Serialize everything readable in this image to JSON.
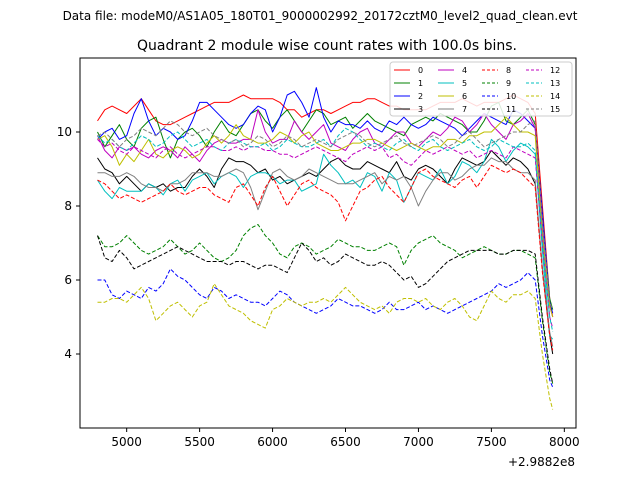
{
  "chart_data": {
    "type": "line",
    "suptitle": "Data file: modeM0/AS1A05_180T01_9000002992_20172cztM0_level2_quad_clean.evt",
    "title": "Quadrant 2 module wise count rates with 100.0s bins.",
    "xlabel": "",
    "ylabel": "",
    "x_offset_label": "+2.9882e8",
    "xlim": [
      4680,
      8080
    ],
    "ylim": [
      2.0,
      12.0
    ],
    "xticks": [
      5000,
      5500,
      6000,
      6500,
      7000,
      7500,
      8000
    ],
    "yticks": [
      4,
      6,
      8,
      10
    ],
    "x": [
      4800,
      4850,
      4900,
      4950,
      5000,
      5050,
      5100,
      5150,
      5200,
      5250,
      5300,
      5350,
      5400,
      5450,
      5500,
      5550,
      5600,
      5650,
      5700,
      5750,
      5800,
      5850,
      5900,
      5950,
      6000,
      6050,
      6100,
      6150,
      6200,
      6250,
      6300,
      6350,
      6400,
      6450,
      6500,
      6550,
      6600,
      6650,
      6700,
      6750,
      6800,
      6850,
      6900,
      6950,
      7000,
      7050,
      7100,
      7150,
      7200,
      7250,
      7300,
      7350,
      7400,
      7450,
      7500,
      7550,
      7600,
      7650,
      7700,
      7750,
      7800,
      7850,
      7900,
      7920
    ],
    "legend_position": "top-right",
    "series": [
      {
        "name": "0",
        "color": "#ff0000",
        "dash": "solid",
        "values": [
          10.3,
          10.6,
          10.7,
          10.6,
          10.5,
          10.7,
          10.9,
          10.6,
          10.3,
          10.2,
          10.2,
          10.3,
          10.4,
          10.5,
          10.6,
          10.7,
          10.8,
          10.8,
          10.8,
          10.9,
          11.0,
          10.9,
          10.9,
          10.9,
          10.9,
          10.8,
          10.6,
          10.6,
          10.4,
          10.5,
          10.6,
          10.6,
          10.5,
          10.6,
          10.7,
          10.8,
          10.8,
          10.9,
          10.9,
          10.8,
          10.7,
          10.7,
          10.6,
          10.6,
          10.6,
          10.6,
          10.7,
          10.8,
          10.8,
          10.8,
          10.9,
          10.8,
          10.7,
          10.8,
          10.8,
          10.8,
          10.9,
          11.0,
          10.9,
          10.8,
          10.5,
          8.0,
          5.5,
          5.0
        ]
      },
      {
        "name": "1",
        "color": "#008000",
        "dash": "solid",
        "values": [
          10.0,
          9.6,
          9.9,
          10.2,
          9.8,
          9.6,
          10.1,
          10.3,
          10.4,
          9.8,
          9.3,
          9.8,
          10.0,
          10.1,
          9.9,
          9.6,
          10.0,
          10.3,
          10.0,
          9.9,
          10.2,
          10.5,
          10.6,
          10.3,
          10.1,
          10.4,
          10.6,
          10.3,
          10.0,
          10.3,
          10.6,
          10.5,
          10.2,
          10.3,
          10.4,
          10.1,
          10.3,
          10.5,
          10.3,
          10.2,
          10.1,
          10.0,
          9.9,
          10.2,
          10.3,
          10.4,
          10.3,
          10.5,
          10.4,
          10.3,
          10.2,
          10.0,
          10.0,
          10.3,
          10.7,
          10.8,
          10.3,
          10.2,
          10.4,
          10.6,
          10.2,
          7.7,
          5.5,
          5.2
        ]
      },
      {
        "name": "2",
        "color": "#0000ff",
        "dash": "solid",
        "values": [
          9.8,
          10.0,
          10.1,
          9.8,
          9.9,
          10.5,
          10.9,
          10.3,
          9.9,
          10.1,
          10.0,
          9.8,
          9.9,
          10.3,
          10.8,
          10.8,
          10.6,
          10.4,
          10.2,
          10.1,
          10.2,
          10.5,
          10.7,
          10.6,
          10.0,
          10.4,
          11.0,
          11.1,
          10.8,
          10.4,
          11.2,
          10.4,
          10.0,
          10.3,
          10.2,
          10.2,
          10.1,
          10.3,
          10.1,
          10.0,
          10.3,
          10.2,
          10.4,
          10.2,
          10.1,
          10.2,
          10.4,
          10.3,
          10.2,
          10.1,
          9.9,
          10.1,
          10.3,
          10.5,
          10.4,
          10.3,
          10.2,
          10.6,
          10.5,
          10.3,
          10.1,
          7.8,
          5.4,
          5.1
        ]
      },
      {
        "name": "3",
        "color": "#000000",
        "dash": "solid",
        "values": [
          9.3,
          9.0,
          8.9,
          8.6,
          8.8,
          8.6,
          8.4,
          8.6,
          8.5,
          8.6,
          8.4,
          8.5,
          8.5,
          8.8,
          9.0,
          8.8,
          8.5,
          9.0,
          9.3,
          9.2,
          9.2,
          9.1,
          8.9,
          9.0,
          8.7,
          8.8,
          8.6,
          8.7,
          8.8,
          8.9,
          8.8,
          9.0,
          9.2,
          9.3,
          9.1,
          9.0,
          9.0,
          9.2,
          9.1,
          9.0,
          8.9,
          9.2,
          8.8,
          8.7,
          9.0,
          9.1,
          9.0,
          8.8,
          8.6,
          9.0,
          9.3,
          9.2,
          9.1,
          9.2,
          9.5,
          9.3,
          9.1,
          9.3,
          9.2,
          9.0,
          8.6,
          6.3,
          4.5,
          4.0
        ]
      },
      {
        "name": "4",
        "color": "#bf00bf",
        "dash": "solid",
        "values": [
          9.9,
          9.5,
          9.3,
          9.6,
          9.5,
          9.6,
          9.4,
          9.3,
          9.5,
          9.6,
          9.5,
          9.3,
          9.6,
          9.4,
          9.2,
          9.5,
          9.7,
          9.8,
          9.7,
          9.7,
          9.8,
          9.8,
          10.6,
          10.0,
          9.7,
          9.8,
          9.8,
          10.3,
          10.0,
          9.8,
          10.0,
          10.2,
          9.7,
          9.6,
          9.5,
          9.8,
          10.0,
          10.1,
          9.7,
          9.6,
          9.8,
          10.0,
          10.0,
          9.7,
          9.6,
          9.8,
          10.0,
          9.9,
          10.1,
          10.4,
          10.3,
          10.0,
          10.2,
          10.5,
          10.2,
          10.0,
          9.8,
          10.2,
          10.3,
          10.5,
          10.1,
          7.4,
          5.3,
          5.0
        ]
      },
      {
        "name": "5",
        "color": "#00bfbf",
        "dash": "solid",
        "values": [
          8.7,
          8.4,
          8.2,
          8.5,
          8.4,
          8.4,
          8.4,
          8.6,
          8.5,
          8.3,
          8.6,
          8.7,
          8.4,
          8.7,
          8.8,
          8.9,
          8.6,
          8.8,
          8.9,
          8.8,
          8.5,
          8.8,
          8.9,
          8.9,
          8.8,
          8.6,
          8.7,
          8.7,
          8.4,
          8.5,
          8.6,
          9.4,
          9.1,
          8.9,
          8.6,
          8.7,
          8.5,
          8.9,
          8.8,
          8.4,
          8.9,
          8.7,
          8.1,
          8.5,
          8.9,
          8.8,
          8.7,
          9.0,
          8.6,
          8.8,
          9.2,
          9.1,
          8.9,
          9.2,
          9.8,
          9.6,
          9.2,
          9.5,
          9.7,
          9.6,
          9.4,
          6.8,
          4.5,
          4.4
        ]
      },
      {
        "name": "6",
        "color": "#bfbf00",
        "dash": "solid",
        "values": [
          9.8,
          9.9,
          9.6,
          9.1,
          9.4,
          9.2,
          9.5,
          9.8,
          9.4,
          9.3,
          9.5,
          9.6,
          9.5,
          9.3,
          9.4,
          9.7,
          9.9,
          9.7,
          9.9,
          10.2,
          9.9,
          9.8,
          9.7,
          9.7,
          9.8,
          10.0,
          9.9,
          9.7,
          9.9,
          10.0,
          9.7,
          9.6,
          9.5,
          9.5,
          9.6,
          9.7,
          9.7,
          9.8,
          9.8,
          9.7,
          9.6,
          9.5,
          9.6,
          9.7,
          9.6,
          9.5,
          9.6,
          9.6,
          9.8,
          9.8,
          9.7,
          9.9,
          9.9,
          10.0,
          10.0,
          10.2,
          10.4,
          10.2,
          10.0,
          10.0,
          9.9,
          7.2,
          5.3,
          5.0
        ]
      },
      {
        "name": "7",
        "color": "#808080",
        "dash": "solid",
        "values": [
          8.9,
          8.9,
          8.8,
          8.8,
          8.9,
          8.8,
          8.6,
          8.5,
          8.5,
          8.4,
          8.6,
          8.6,
          8.7,
          8.9,
          8.9,
          8.9,
          8.8,
          8.8,
          8.9,
          9.0,
          8.9,
          8.5,
          7.9,
          8.4,
          8.9,
          9.0,
          8.8,
          8.7,
          8.8,
          9.0,
          8.9,
          8.8,
          8.7,
          8.6,
          8.6,
          8.6,
          8.7,
          8.8,
          8.9,
          8.6,
          8.8,
          8.7,
          8.8,
          8.5,
          8.0,
          8.4,
          8.7,
          8.9,
          8.9,
          8.7,
          8.8,
          9.0,
          9.1,
          9.1,
          9.3,
          9.2,
          9.2,
          9.0,
          8.9,
          8.9,
          8.7,
          6.3,
          4.6,
          4.2
        ]
      },
      {
        "name": "8",
        "color": "#ff0000",
        "dash": "dashed",
        "values": [
          8.7,
          8.6,
          8.4,
          8.2,
          8.3,
          8.2,
          8.1,
          8.2,
          8.3,
          8.4,
          8.6,
          8.4,
          8.3,
          8.4,
          8.5,
          8.5,
          8.3,
          8.2,
          8.1,
          8.5,
          8.6,
          8.3,
          8.0,
          8.5,
          8.8,
          8.4,
          8.0,
          8.3,
          8.6,
          8.7,
          8.5,
          8.4,
          8.3,
          8.1,
          7.6,
          8.0,
          8.4,
          8.5,
          8.7,
          8.8,
          8.5,
          8.3,
          8.1,
          8.5,
          8.9,
          9.0,
          8.8,
          8.7,
          8.6,
          8.5,
          8.7,
          8.8,
          8.5,
          8.8,
          9.1,
          9.0,
          8.9,
          9.0,
          8.9,
          8.7,
          8.5,
          6.2,
          4.5,
          4.1
        ]
      },
      {
        "name": "9",
        "color": "#008000",
        "dash": "dashed",
        "values": [
          7.2,
          6.9,
          6.9,
          7.0,
          7.2,
          7.0,
          6.8,
          6.7,
          6.8,
          6.9,
          7.1,
          6.9,
          6.7,
          6.8,
          7.0,
          6.8,
          6.6,
          6.5,
          6.6,
          6.8,
          7.2,
          7.4,
          7.5,
          7.2,
          7.0,
          6.7,
          6.6,
          6.9,
          7.0,
          6.9,
          6.7,
          6.8,
          6.9,
          7.1,
          7.0,
          6.9,
          6.9,
          6.8,
          6.8,
          6.9,
          7.0,
          6.9,
          6.4,
          6.8,
          7.0,
          7.1,
          7.2,
          7.0,
          6.9,
          6.8,
          6.6,
          6.7,
          6.8,
          6.9,
          6.8,
          6.7,
          6.7,
          6.8,
          6.8,
          6.7,
          6.6,
          4.9,
          3.5,
          3.2
        ]
      },
      {
        "name": "10",
        "color": "#0000ff",
        "dash": "dashed",
        "values": [
          6.0,
          6.0,
          5.6,
          5.5,
          5.7,
          5.6,
          5.5,
          5.8,
          5.7,
          5.9,
          6.3,
          6.1,
          6.0,
          5.8,
          5.6,
          5.5,
          5.8,
          5.7,
          5.5,
          5.6,
          5.5,
          5.4,
          5.4,
          5.3,
          5.5,
          5.7,
          5.6,
          5.4,
          5.3,
          5.2,
          5.1,
          5.2,
          5.3,
          5.5,
          5.4,
          5.3,
          5.3,
          5.2,
          5.1,
          5.2,
          5.4,
          5.2,
          5.2,
          5.3,
          5.4,
          5.2,
          5.3,
          5.2,
          5.1,
          5.2,
          5.3,
          5.4,
          5.5,
          5.6,
          5.7,
          5.9,
          5.8,
          5.9,
          6.0,
          6.2,
          6.0,
          4.5,
          3.3,
          3.1
        ]
      },
      {
        "name": "11",
        "color": "#000000",
        "dash": "dashed",
        "values": [
          7.2,
          6.6,
          6.5,
          6.8,
          6.6,
          6.3,
          6.4,
          6.5,
          6.6,
          6.7,
          6.8,
          6.9,
          6.8,
          6.7,
          6.6,
          6.5,
          6.5,
          6.5,
          6.4,
          6.5,
          6.5,
          6.4,
          6.3,
          6.4,
          6.4,
          6.3,
          6.2,
          6.6,
          7.0,
          6.8,
          6.5,
          6.6,
          6.4,
          6.5,
          6.7,
          6.6,
          6.5,
          6.4,
          6.4,
          6.5,
          6.4,
          6.2,
          6.0,
          6.1,
          5.8,
          5.9,
          6.1,
          6.3,
          6.5,
          6.6,
          6.7,
          6.8,
          6.8,
          6.8,
          6.8,
          6.7,
          6.7,
          6.8,
          6.8,
          6.8,
          6.7,
          5.0,
          3.6,
          3.2
        ]
      },
      {
        "name": "12",
        "color": "#bf00bf",
        "dash": "dashed",
        "values": [
          9.8,
          9.6,
          9.7,
          9.5,
          9.4,
          9.6,
          9.5,
          9.4,
          9.3,
          9.5,
          9.6,
          9.4,
          9.3,
          9.4,
          9.5,
          9.6,
          9.6,
          9.5,
          9.5,
          9.6,
          9.5,
          9.6,
          9.6,
          9.5,
          9.5,
          9.4,
          9.4,
          9.3,
          9.4,
          9.5,
          9.6,
          9.5,
          9.4,
          9.3,
          9.2,
          9.4,
          9.5,
          9.6,
          9.5,
          9.6,
          9.3,
          9.4,
          9.2,
          9.1,
          9.3,
          9.5,
          9.4,
          9.5,
          9.6,
          9.5,
          9.4,
          9.5,
          9.3,
          9.4,
          9.5,
          9.4,
          9.3,
          9.6,
          9.5,
          9.4,
          9.3,
          7.0,
          5.0,
          4.7
        ]
      },
      {
        "name": "13",
        "color": "#00bfbf",
        "dash": "dashed",
        "values": [
          9.9,
          9.7,
          9.8,
          9.6,
          9.5,
          9.7,
          9.9,
          9.8,
          9.6,
          9.7,
          9.9,
          10.0,
          9.8,
          9.6,
          9.7,
          9.8,
          9.6,
          9.5,
          9.7,
          9.8,
          9.7,
          9.6,
          9.6,
          9.7,
          9.5,
          9.6,
          9.8,
          9.7,
          9.6,
          9.6,
          9.7,
          9.8,
          9.6,
          9.9,
          10.1,
          10.0,
          9.8,
          9.6,
          9.7,
          9.6,
          9.5,
          9.7,
          9.8,
          9.6,
          9.5,
          9.7,
          9.8,
          9.6,
          9.5,
          9.6,
          9.7,
          9.8,
          9.6,
          9.5,
          9.6,
          9.8,
          9.7,
          9.6,
          9.6,
          9.7,
          9.5,
          7.0,
          5.0,
          4.6
        ]
      },
      {
        "name": "14",
        "color": "#bfbf00",
        "dash": "dashed",
        "values": [
          5.4,
          5.4,
          5.5,
          5.5,
          5.4,
          5.6,
          5.8,
          5.5,
          4.9,
          5.1,
          5.3,
          5.4,
          5.2,
          5.0,
          5.3,
          5.4,
          5.9,
          5.6,
          5.3,
          5.2,
          5.1,
          4.9,
          4.8,
          4.7,
          5.2,
          5.3,
          5.5,
          5.4,
          5.3,
          5.4,
          5.4,
          5.5,
          5.4,
          5.6,
          5.8,
          5.6,
          5.4,
          5.3,
          5.2,
          5.3,
          5.1,
          5.4,
          5.5,
          5.5,
          5.4,
          5.5,
          5.3,
          5.2,
          5.4,
          5.5,
          5.3,
          5.0,
          4.9,
          5.3,
          5.7,
          5.5,
          5.4,
          5.6,
          5.6,
          5.7,
          5.5,
          4.0,
          2.8,
          2.5
        ]
      },
      {
        "name": "15",
        "color": "#808080",
        "dash": "dashed",
        "values": [
          9.9,
          10.0,
          9.8,
          9.6,
          9.8,
          9.9,
          10.1,
          10.0,
          9.9,
          10.1,
          10.3,
          10.2,
          10.0,
          9.9,
          10.0,
          10.1,
          9.9,
          9.8,
          9.7,
          9.8,
          9.6,
          9.7,
          9.9,
          9.8,
          9.6,
          9.7,
          9.9,
          9.8,
          9.6,
          9.7,
          9.8,
          9.7,
          9.6,
          9.8,
          9.9,
          10.0,
          9.9,
          9.7,
          9.6,
          9.7,
          9.8,
          9.9,
          9.7,
          9.6,
          9.7,
          9.8,
          9.9,
          9.8,
          9.6,
          9.7,
          9.9,
          10.0,
          9.8,
          9.6,
          9.7,
          9.8,
          9.9,
          10.0,
          10.0,
          10.2,
          10.3,
          7.6,
          5.4,
          5.2
        ]
      }
    ]
  }
}
